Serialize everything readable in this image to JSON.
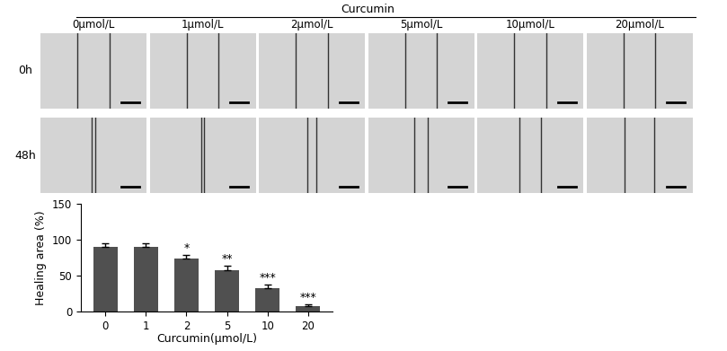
{
  "header": "Curcumin",
  "columns": [
    "0μmol/L",
    "1μmol/L",
    "2μmol/L",
    "5μmol/L",
    "10μmol/L",
    "20μmol/L"
  ],
  "rows": [
    "0h",
    "48h"
  ],
  "chart_data": {
    "type": "bar",
    "categories": [
      "0",
      "1",
      "2",
      "5",
      "10",
      "20"
    ],
    "values": [
      90,
      90,
      74,
      57,
      33,
      7
    ],
    "errors": [
      5,
      5,
      5,
      7,
      5,
      3
    ],
    "significance": [
      null,
      null,
      "*",
      "**",
      "***",
      "***"
    ],
    "color": "#505050",
    "x_label": "Curcumin(μmol/L)",
    "y_label": "Healing area (%)",
    "ylim": [
      0,
      150
    ],
    "yticks": [
      0,
      50,
      100,
      150
    ],
    "grid": false
  }
}
